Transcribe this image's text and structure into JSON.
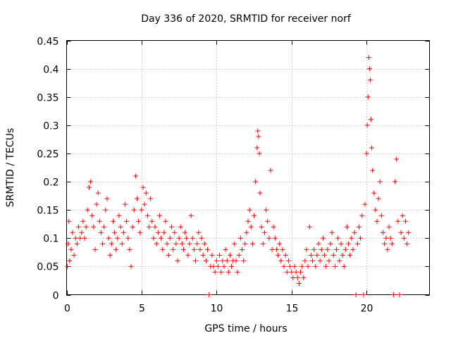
{
  "chart_data": {
    "type": "scatter",
    "title": "Day 336 of 2020, SRMTID for receiver norf",
    "xlabel": "GPS time / hours",
    "ylabel": "SRMTID / TECUs",
    "xlim": [
      0,
      24.2
    ],
    "ylim": [
      0,
      0.45
    ],
    "x_ticks": [
      0,
      5,
      10,
      15,
      20
    ],
    "y_ticks": [
      0,
      0.05,
      0.1,
      0.15,
      0.2,
      0.25,
      0.3,
      0.35,
      0.4,
      0.45
    ],
    "x_tick_labels": [
      "0",
      "5",
      "10",
      "15",
      "20"
    ],
    "y_tick_labels": [
      "0",
      "0.05",
      "0.1",
      "0.15",
      "0.2",
      "0.25",
      "0.3",
      "0.35",
      "0.4",
      "0.45"
    ],
    "grid": true,
    "marker": "plus",
    "series": [
      {
        "name": "SRMTID",
        "color": "#ff0000",
        "points": [
          [
            0.05,
            0.05
          ],
          [
            0.1,
            0.09
          ],
          [
            0.15,
            0.13
          ],
          [
            0.2,
            0.06
          ],
          [
            0.3,
            0.08
          ],
          [
            0.4,
            0.11
          ],
          [
            0.5,
            0.07
          ],
          [
            0.6,
            0.1
          ],
          [
            0.7,
            0.09
          ],
          [
            0.8,
            0.12
          ],
          [
            0.9,
            0.1
          ],
          [
            1.0,
            0.11
          ],
          [
            1.1,
            0.13
          ],
          [
            1.2,
            0.1
          ],
          [
            1.3,
            0.12
          ],
          [
            1.4,
            0.15
          ],
          [
            1.5,
            0.19
          ],
          [
            1.6,
            0.2
          ],
          [
            1.7,
            0.14
          ],
          [
            1.8,
            0.12
          ],
          [
            1.9,
            0.08
          ],
          [
            2.0,
            0.16
          ],
          [
            2.1,
            0.18
          ],
          [
            2.2,
            0.13
          ],
          [
            2.3,
            0.11
          ],
          [
            2.4,
            0.09
          ],
          [
            2.5,
            0.12
          ],
          [
            2.6,
            0.15
          ],
          [
            2.7,
            0.17
          ],
          [
            2.8,
            0.1
          ],
          [
            2.9,
            0.07
          ],
          [
            3.0,
            0.09
          ],
          [
            3.1,
            0.13
          ],
          [
            3.2,
            0.11
          ],
          [
            3.3,
            0.08
          ],
          [
            3.4,
            0.1
          ],
          [
            3.5,
            0.14
          ],
          [
            3.6,
            0.12
          ],
          [
            3.7,
            0.09
          ],
          [
            3.8,
            0.11
          ],
          [
            3.9,
            0.16
          ],
          [
            4.0,
            0.13
          ],
          [
            4.1,
            0.1
          ],
          [
            4.2,
            0.08
          ],
          [
            4.3,
            0.05
          ],
          [
            4.4,
            0.12
          ],
          [
            4.5,
            0.15
          ],
          [
            4.6,
            0.21
          ],
          [
            4.7,
            0.17
          ],
          [
            4.8,
            0.13
          ],
          [
            4.9,
            0.11
          ],
          [
            5.0,
            0.15
          ],
          [
            5.1,
            0.19
          ],
          [
            5.2,
            0.16
          ],
          [
            5.3,
            0.18
          ],
          [
            5.4,
            0.14
          ],
          [
            5.5,
            0.12
          ],
          [
            5.6,
            0.17
          ],
          [
            5.7,
            0.13
          ],
          [
            5.8,
            0.1
          ],
          [
            5.9,
            0.12
          ],
          [
            6.0,
            0.09
          ],
          [
            6.1,
            0.11
          ],
          [
            6.2,
            0.14
          ],
          [
            6.3,
            0.1
          ],
          [
            6.4,
            0.08
          ],
          [
            6.5,
            0.11
          ],
          [
            6.6,
            0.13
          ],
          [
            6.7,
            0.09
          ],
          [
            6.8,
            0.07
          ],
          [
            6.9,
            0.1
          ],
          [
            7.0,
            0.12
          ],
          [
            7.1,
            0.08
          ],
          [
            7.2,
            0.11
          ],
          [
            7.3,
            0.09
          ],
          [
            7.4,
            0.06
          ],
          [
            7.5,
            0.1
          ],
          [
            7.6,
            0.12
          ],
          [
            7.7,
            0.09
          ],
          [
            7.8,
            0.08
          ],
          [
            7.9,
            0.11
          ],
          [
            8.0,
            0.1
          ],
          [
            8.1,
            0.07
          ],
          [
            8.2,
            0.09
          ],
          [
            8.3,
            0.14
          ],
          [
            8.4,
            0.1
          ],
          [
            8.5,
            0.08
          ],
          [
            8.6,
            0.06
          ],
          [
            8.7,
            0.09
          ],
          [
            8.8,
            0.11
          ],
          [
            8.9,
            0.08
          ],
          [
            9.0,
            0.1
          ],
          [
            9.1,
            0.07
          ],
          [
            9.2,
            0.09
          ],
          [
            9.3,
            0.06
          ],
          [
            9.4,
            0.08
          ],
          [
            9.5,
            0.0
          ],
          [
            9.6,
            0.05
          ],
          [
            9.7,
            0.07
          ],
          [
            9.8,
            0.05
          ],
          [
            9.9,
            0.04
          ],
          [
            10.0,
            0.06
          ],
          [
            10.1,
            0.05
          ],
          [
            10.2,
            0.07
          ],
          [
            10.3,
            0.04
          ],
          [
            10.4,
            0.06
          ],
          [
            10.5,
            0.05
          ],
          [
            10.6,
            0.08
          ],
          [
            10.7,
            0.06
          ],
          [
            10.8,
            0.04
          ],
          [
            10.9,
            0.07
          ],
          [
            11.0,
            0.05
          ],
          [
            11.1,
            0.06
          ],
          [
            11.2,
            0.09
          ],
          [
            11.3,
            0.06
          ],
          [
            11.4,
            0.04
          ],
          [
            11.5,
            0.07
          ],
          [
            11.6,
            0.1
          ],
          [
            11.7,
            0.08
          ],
          [
            11.8,
            0.06
          ],
          [
            11.9,
            0.09
          ],
          [
            12.0,
            0.11
          ],
          [
            12.1,
            0.13
          ],
          [
            12.2,
            0.15
          ],
          [
            12.3,
            0.12
          ],
          [
            12.4,
            0.09
          ],
          [
            12.5,
            0.14
          ],
          [
            12.6,
            0.2
          ],
          [
            12.7,
            0.26
          ],
          [
            12.75,
            0.29
          ],
          [
            12.8,
            0.28
          ],
          [
            12.85,
            0.25
          ],
          [
            12.9,
            0.18
          ],
          [
            13.0,
            0.12
          ],
          [
            13.1,
            0.09
          ],
          [
            13.2,
            0.11
          ],
          [
            13.3,
            0.15
          ],
          [
            13.4,
            0.13
          ],
          [
            13.5,
            0.1
          ],
          [
            13.6,
            0.22
          ],
          [
            13.7,
            0.08
          ],
          [
            13.8,
            0.12
          ],
          [
            13.9,
            0.1
          ],
          [
            14.0,
            0.08
          ],
          [
            14.1,
            0.07
          ],
          [
            14.2,
            0.09
          ],
          [
            14.3,
            0.06
          ],
          [
            14.4,
            0.08
          ],
          [
            14.5,
            0.05
          ],
          [
            14.6,
            0.07
          ],
          [
            14.7,
            0.04
          ],
          [
            14.8,
            0.06
          ],
          [
            14.9,
            0.05
          ],
          [
            15.0,
            0.04
          ],
          [
            15.1,
            0.03
          ],
          [
            15.2,
            0.05
          ],
          [
            15.3,
            0.04
          ],
          [
            15.4,
            0.03
          ],
          [
            15.5,
            0.02
          ],
          [
            15.6,
            0.04
          ],
          [
            15.7,
            0.05
          ],
          [
            15.8,
            0.03
          ],
          [
            15.9,
            0.06
          ],
          [
            16.0,
            0.08
          ],
          [
            16.1,
            0.05
          ],
          [
            16.2,
            0.12
          ],
          [
            16.3,
            0.07
          ],
          [
            16.4,
            0.06
          ],
          [
            16.5,
            0.08
          ],
          [
            16.6,
            0.05
          ],
          [
            16.7,
            0.07
          ],
          [
            16.8,
            0.09
          ],
          [
            16.9,
            0.06
          ],
          [
            17.0,
            0.08
          ],
          [
            17.1,
            0.1
          ],
          [
            17.2,
            0.07
          ],
          [
            17.3,
            0.05
          ],
          [
            17.4,
            0.08
          ],
          [
            17.5,
            0.06
          ],
          [
            17.6,
            0.09
          ],
          [
            17.7,
            0.11
          ],
          [
            17.8,
            0.07
          ],
          [
            17.9,
            0.05
          ],
          [
            18.0,
            0.08
          ],
          [
            18.1,
            0.1
          ],
          [
            18.2,
            0.06
          ],
          [
            18.3,
            0.09
          ],
          [
            18.4,
            0.07
          ],
          [
            18.5,
            0.05
          ],
          [
            18.6,
            0.08
          ],
          [
            18.7,
            0.12
          ],
          [
            18.8,
            0.09
          ],
          [
            18.9,
            0.07
          ],
          [
            19.0,
            0.1
          ],
          [
            19.1,
            0.08
          ],
          [
            19.2,
            0.11
          ],
          [
            19.3,
            0.0
          ],
          [
            19.4,
            0.09
          ],
          [
            19.5,
            0.12
          ],
          [
            19.6,
            0.1
          ],
          [
            19.7,
            0.14
          ],
          [
            19.8,
            0.0
          ],
          [
            19.9,
            0.16
          ],
          [
            20.0,
            0.25
          ],
          [
            20.05,
            0.3
          ],
          [
            20.1,
            0.35
          ],
          [
            20.15,
            0.42
          ],
          [
            20.2,
            0.4
          ],
          [
            20.25,
            0.38
          ],
          [
            20.3,
            0.31
          ],
          [
            20.35,
            0.26
          ],
          [
            20.4,
            0.22
          ],
          [
            20.5,
            0.18
          ],
          [
            20.6,
            0.15
          ],
          [
            20.7,
            0.13
          ],
          [
            20.8,
            0.17
          ],
          [
            20.9,
            0.2
          ],
          [
            21.0,
            0.14
          ],
          [
            21.1,
            0.11
          ],
          [
            21.2,
            0.09
          ],
          [
            21.3,
            0.1
          ],
          [
            21.4,
            0.08
          ],
          [
            21.5,
            0.12
          ],
          [
            21.6,
            0.1
          ],
          [
            21.7,
            0.09
          ],
          [
            21.8,
            0.0
          ],
          [
            21.9,
            0.2
          ],
          [
            22.0,
            0.24
          ],
          [
            22.1,
            0.13
          ],
          [
            22.2,
            0.0
          ],
          [
            22.3,
            0.11
          ],
          [
            22.4,
            0.14
          ],
          [
            22.5,
            0.1
          ],
          [
            22.6,
            0.13
          ],
          [
            22.7,
            0.09
          ],
          [
            22.8,
            0.11
          ]
        ]
      }
    ]
  }
}
